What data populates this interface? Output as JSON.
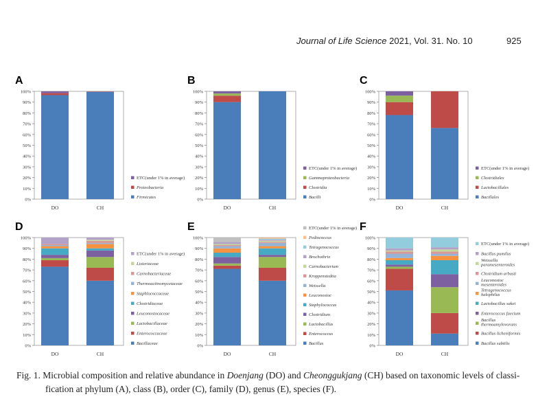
{
  "header": {
    "journal_name": "Journal of Life Science",
    "journal_info": "2021, Vol. 31. No. 10",
    "page_number": "925"
  },
  "colors": {
    "blue": "#4a7ebb",
    "red": "#be4b48",
    "green": "#98b954",
    "purple": "#7d60a0",
    "teal": "#46aac5",
    "orange": "#f69240",
    "lightblue": "#95b3d7",
    "pink": "#d99795",
    "lightgreen": "#c3d69b",
    "lavender": "#b3a2c7",
    "aqua": "#93cddd",
    "peach": "#fac08f",
    "gray": "#bfbfbf",
    "darkblue": "#2c4d75",
    "darkred": "#772c2a",
    "olive": "#5f7530"
  },
  "chart_data": [
    {
      "panel": "A",
      "type": "bar",
      "stacked": true,
      "categories": [
        "DO",
        "CH"
      ],
      "y_ticks": [
        "0%",
        "10%",
        "20%",
        "30%",
        "40%",
        "50%",
        "60%",
        "70%",
        "80%",
        "90%",
        "100%"
      ],
      "series": [
        {
          "name": "Firmicutes",
          "color": "blue",
          "values": [
            96.5,
            99.5
          ]
        },
        {
          "name": "Proteobacteria",
          "color": "red",
          "values": [
            1.8,
            0.3
          ]
        },
        {
          "name": "ETC(under 1% in average)",
          "color": "purple",
          "values": [
            1.7,
            0.2
          ]
        }
      ]
    },
    {
      "panel": "B",
      "type": "bar",
      "stacked": true,
      "categories": [
        "DO",
        "CH"
      ],
      "y_ticks": [
        "0%",
        "10%",
        "20%",
        "30%",
        "40%",
        "50%",
        "60%",
        "70%",
        "80%",
        "90%",
        "100%"
      ],
      "series": [
        {
          "name": "Bacilli",
          "color": "blue",
          "values": [
            90,
            100
          ]
        },
        {
          "name": "Clostridia",
          "color": "red",
          "values": [
            6,
            0
          ]
        },
        {
          "name": "Gammaproteobacteria",
          "color": "green",
          "values": [
            2,
            0
          ]
        },
        {
          "name": "ETC(under 1% in average)",
          "color": "purple",
          "values": [
            2,
            0
          ]
        }
      ]
    },
    {
      "panel": "C",
      "type": "bar",
      "stacked": true,
      "categories": [
        "DO",
        "CH"
      ],
      "y_ticks": [
        "0%",
        "10%",
        "20%",
        "30%",
        "40%",
        "50%",
        "60%",
        "70%",
        "80%",
        "90%",
        "100%"
      ],
      "series": [
        {
          "name": "Bacillales",
          "color": "blue",
          "values": [
            78,
            66
          ]
        },
        {
          "name": "Lactobacillales",
          "color": "red",
          "values": [
            12,
            34
          ]
        },
        {
          "name": "Clostridiales",
          "color": "green",
          "values": [
            6,
            0
          ]
        },
        {
          "name": "ETC(under 1% in average)",
          "color": "purple",
          "values": [
            4,
            0
          ]
        }
      ]
    },
    {
      "panel": "D",
      "type": "bar",
      "stacked": true,
      "categories": [
        "DO",
        "CH"
      ],
      "y_ticks": [
        "0%",
        "10%",
        "20%",
        "30%",
        "40%",
        "50%",
        "60%",
        "70%",
        "80%",
        "90%",
        "100%"
      ],
      "series": [
        {
          "name": "Bacillaceae",
          "color": "blue",
          "values": [
            73,
            60
          ]
        },
        {
          "name": "Enterococcaceae",
          "color": "red",
          "values": [
            6,
            12
          ]
        },
        {
          "name": "Lactobacillaceae",
          "color": "green",
          "values": [
            2,
            10
          ]
        },
        {
          "name": "Leuconostocaceae",
          "color": "purple",
          "values": [
            3,
            6
          ]
        },
        {
          "name": "Clostridiaceae",
          "color": "teal",
          "values": [
            6,
            2
          ]
        },
        {
          "name": "Staphlococcaceae",
          "color": "orange",
          "values": [
            2,
            4
          ]
        },
        {
          "name": "Thermoactinomycetaceae",
          "color": "lightblue",
          "values": [
            1,
            1
          ]
        },
        {
          "name": "Carnobacteriaceae",
          "color": "pink",
          "values": [
            1,
            2
          ]
        },
        {
          "name": "Listeriaceae",
          "color": "lightgreen",
          "values": [
            0,
            1
          ]
        },
        {
          "name": "ETC(under 1% in average)",
          "color": "lavender",
          "values": [
            6,
            2
          ]
        }
      ]
    },
    {
      "panel": "E",
      "type": "bar",
      "stacked": true,
      "categories": [
        "DO",
        "CH"
      ],
      "y_ticks": [
        "0%",
        "10%",
        "20%",
        "30%",
        "40%",
        "50%",
        "60%",
        "70%",
        "80%",
        "90%",
        "100%"
      ],
      "series": [
        {
          "name": "Bacillus",
          "color": "blue",
          "values": [
            71,
            60
          ]
        },
        {
          "name": "Enterococcus",
          "color": "red",
          "values": [
            3,
            12
          ]
        },
        {
          "name": "Lactobacillus",
          "color": "green",
          "values": [
            2,
            10
          ]
        },
        {
          "name": "Clostridium",
          "color": "purple",
          "values": [
            6,
            2
          ]
        },
        {
          "name": "Staphylococcus",
          "color": "teal",
          "values": [
            4,
            6
          ]
        },
        {
          "name": "Leuconostoc",
          "color": "orange",
          "values": [
            4,
            2
          ]
        },
        {
          "name": "Weissella",
          "color": "lightblue",
          "values": [
            2,
            3
          ]
        },
        {
          "name": "Kroppenstedtia",
          "color": "pink",
          "values": [
            1,
            1
          ]
        },
        {
          "name": "Carnobacterium",
          "color": "lightgreen",
          "values": [
            1,
            1
          ]
        },
        {
          "name": "Brochothrix",
          "color": "lavender",
          "values": [
            2,
            1
          ]
        },
        {
          "name": "Tetragenococcus",
          "color": "aqua",
          "values": [
            0,
            1
          ]
        },
        {
          "name": "Pediococcus",
          "color": "peach",
          "values": [
            0,
            1
          ]
        },
        {
          "name": "ETC(under 1% in average)",
          "color": "gray",
          "values": [
            4,
            0
          ]
        }
      ]
    },
    {
      "panel": "F",
      "type": "bar",
      "stacked": true,
      "categories": [
        "DO",
        "CH"
      ],
      "y_ticks": [
        "0%",
        "10%",
        "20%",
        "30%",
        "40%",
        "50%",
        "60%",
        "70%",
        "80%",
        "90%",
        "100%"
      ],
      "series": [
        {
          "name": "Bacillus subtilis",
          "color": "blue",
          "values": [
            51,
            11
          ]
        },
        {
          "name": "Bacillus licheniformis",
          "color": "red",
          "values": [
            20,
            19
          ]
        },
        {
          "name": "Bacillus thermoamylovorans",
          "color": "green",
          "values": [
            2,
            24
          ]
        },
        {
          "name": "Enterococcus faecium",
          "color": "purple",
          "values": [
            2,
            12
          ]
        },
        {
          "name": "Lactobacillus sakei",
          "color": "teal",
          "values": [
            4,
            13
          ]
        },
        {
          "name": "Tetragenococcus halophilus",
          "color": "orange",
          "values": [
            2,
            4
          ]
        },
        {
          "name": "Leuconostoc mesenteroides",
          "color": "lightblue",
          "values": [
            4,
            2
          ]
        },
        {
          "name": "Clostridium arbusti",
          "color": "pink",
          "values": [
            2,
            2
          ]
        },
        {
          "name": "Weissella paramesenteroides",
          "color": "lightgreen",
          "values": [
            1,
            2
          ]
        },
        {
          "name": "Bacillus pumilus",
          "color": "lavender",
          "values": [
            2,
            2
          ]
        },
        {
          "name": "ETC(under 1% in average)",
          "color": "aqua",
          "values": [
            10,
            9
          ]
        }
      ]
    }
  ],
  "caption": {
    "fig_label": "Fig. 1.",
    "part1": " Microbial composition and relative abundance in ",
    "doenjang": "Doenjang",
    "part2": " (DO) and ",
    "cheonggukjang": "Cheonggukjang",
    "part3": " (CH) based on taxonomic levels of classi-",
    "line2": "fication at phylum (A), class (B), order (C), family (D), genus (E), species (F)."
  }
}
